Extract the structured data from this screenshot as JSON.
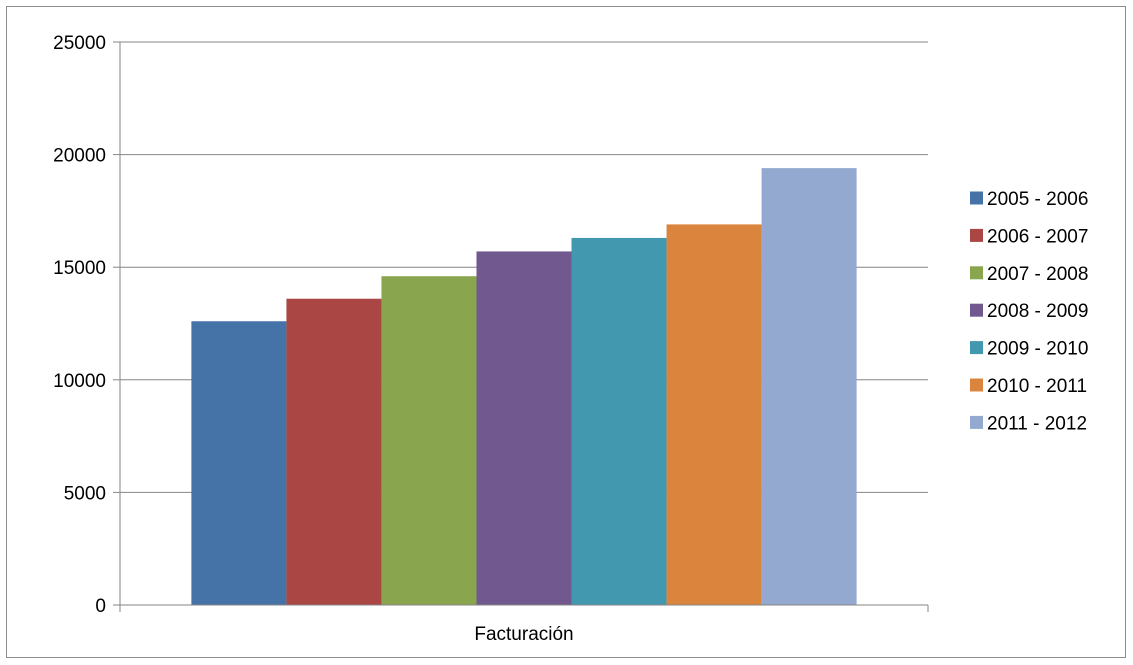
{
  "chart_data": {
    "type": "bar",
    "categories": [
      "Facturación"
    ],
    "series": [
      {
        "name": "2005 - 2006",
        "values": [
          12600
        ],
        "color": "#4572a7"
      },
      {
        "name": "2006 - 2007",
        "values": [
          13600
        ],
        "color": "#aa4643"
      },
      {
        "name": "2007 - 2008",
        "values": [
          14600
        ],
        "color": "#89a54e"
      },
      {
        "name": "2008 - 2009",
        "values": [
          15700
        ],
        "color": "#71588f"
      },
      {
        "name": "2009 - 2010",
        "values": [
          16300
        ],
        "color": "#4198af"
      },
      {
        "name": "2010 - 2011",
        "values": [
          16900
        ],
        "color": "#db843d"
      },
      {
        "name": "2011 - 2012",
        "values": [
          19400
        ],
        "color": "#93a9cf"
      }
    ],
    "ylim": [
      0,
      25000
    ],
    "yticks": [
      "0",
      "5000",
      "10000",
      "15000",
      "20000",
      "25000"
    ],
    "grid": true,
    "legend_position": "right"
  }
}
